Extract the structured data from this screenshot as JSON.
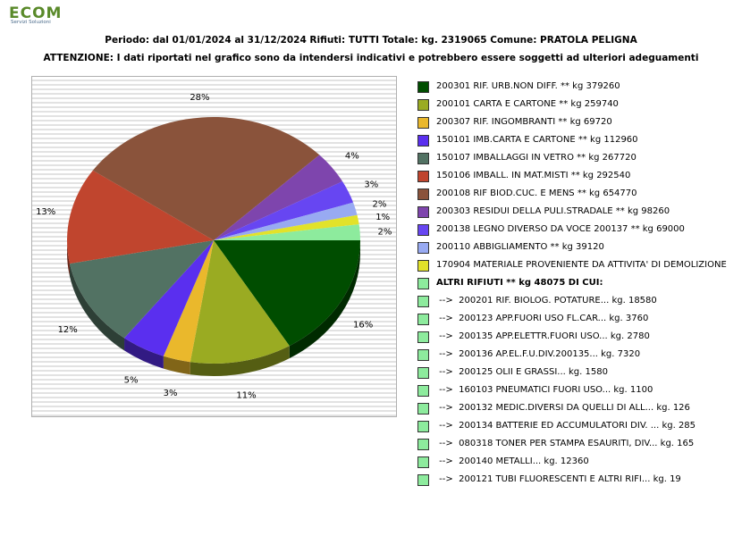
{
  "logo": {
    "brand": "ECOM",
    "tagline": "Servizi Soluzioni",
    "accent": "#5a8a2a"
  },
  "header": {
    "line1": "Periodo: dal 01/01/2024 al 31/12/2024 Rifiuti: TUTTI   Totale: kg. 2319065    Comune: PRATOLA PELIGNA",
    "line2": "ATTENZIONE: I dati riportati nel grafico sono da intendersi indicativi e potrebbero essere soggetti ad ulteriori adeguamenti"
  },
  "chart_data": {
    "type": "pie",
    "grid": true,
    "legend_position": "right",
    "slices": [
      {
        "code": "200301",
        "kg": 379260,
        "pct": "16%",
        "color": "#004d00"
      },
      {
        "code": "200101",
        "kg": 259740,
        "pct": "11%",
        "color": "#9aab22"
      },
      {
        "code": "200307",
        "kg": 69720,
        "pct": "3%",
        "color": "#eab82c"
      },
      {
        "code": "150101",
        "kg": 112960,
        "pct": "5%",
        "color": "#5a2fef"
      },
      {
        "code": "150107",
        "kg": 267720,
        "pct": "12%",
        "color": "#527263"
      },
      {
        "code": "150106",
        "kg": 292540,
        "pct": "13%",
        "color": "#c0452e"
      },
      {
        "code": "200108",
        "kg": 654770,
        "pct": "28%",
        "color": "#8a533b"
      },
      {
        "code": "200303",
        "kg": 98260,
        "pct": "4%",
        "color": "#7e45ad"
      },
      {
        "code": "200138",
        "kg": 69000,
        "pct": "3%",
        "color": "#6746f2"
      },
      {
        "code": "200110",
        "kg": 39120,
        "pct": "2%",
        "color": "#98aaf2"
      },
      {
        "code": "170904",
        "kg": 27900,
        "pct": "1%",
        "color": "#e2e22a"
      },
      {
        "code": "ALTRI",
        "kg": 48075,
        "pct": "2%",
        "color": "#8deb9d"
      }
    ]
  },
  "legend": [
    {
      "text": "200301 RIF. URB.NON DIFF. ** kg 379260",
      "color": "#004d00",
      "bold": false
    },
    {
      "text": "200101 CARTA E CARTONE ** kg 259740",
      "color": "#9aab22",
      "bold": false
    },
    {
      "text": "200307 RIF. INGOMBRANTI ** kg 69720",
      "color": "#eab82c",
      "bold": false
    },
    {
      "text": "150101 IMB.CARTA E CARTONE ** kg 112960",
      "color": "#5a2fef",
      "bold": false
    },
    {
      "text": "150107 IMBALLAGGI IN VETRO ** kg 267720",
      "color": "#527263",
      "bold": false
    },
    {
      "text": "150106 IMBALL. IN MAT.MISTI ** kg 292540",
      "color": "#c0452e",
      "bold": false
    },
    {
      "text": "200108 RIF BIOD.CUC. E MENS ** kg 654770",
      "color": "#8a533b",
      "bold": false
    },
    {
      "text": "200303 RESIDUI DELLA PULI.STRADALE ** kg 98260",
      "color": "#7e45ad",
      "bold": false
    },
    {
      "text": "200138 LEGNO DIVERSO DA VOCE 200137 ** kg 69000",
      "color": "#6746f2",
      "bold": false
    },
    {
      "text": "200110 ABBIGLIAMENTO ** kg 39120",
      "color": "#98aaf2",
      "bold": false
    },
    {
      "text": "170904 MATERIALE PROVENIENTE DA ATTIVITA' DI DEMOLIZIONE",
      "color": "#e2e22a",
      "bold": false
    },
    {
      "text": "ALTRI RIFIUTI ** kg 48075 DI CUI:",
      "color": "#8deb9d",
      "bold": true
    },
    {
      "text": " -->  200201 RIF. BIOLOG. POTATURE... kg. 18580",
      "color": "#8deb9d",
      "bold": false
    },
    {
      "text": " -->  200123 APP.FUORI USO FL.CAR... kg. 3760",
      "color": "#8deb9d",
      "bold": false
    },
    {
      "text": " -->  200135 APP.ELETTR.FUORI USO... kg. 2780",
      "color": "#8deb9d",
      "bold": false
    },
    {
      "text": " -->  200136 AP.EL.F.U.DIV.200135... kg. 7320",
      "color": "#8deb9d",
      "bold": false
    },
    {
      "text": " -->  200125 OLII E GRASSI... kg. 1580",
      "color": "#8deb9d",
      "bold": false
    },
    {
      "text": " -->  160103 PNEUMATICI FUORI USO... kg. 1100",
      "color": "#8deb9d",
      "bold": false
    },
    {
      "text": " -->  200132 MEDIC.DIVERSI DA QUELLI DI ALL... kg. 126",
      "color": "#8deb9d",
      "bold": false
    },
    {
      "text": " -->  200134 BATTERIE ED ACCUMULATORI DIV. ... kg. 285",
      "color": "#8deb9d",
      "bold": false
    },
    {
      "text": " -->  080318 TONER PER STAMPA ESAURITI, DIV... kg. 165",
      "color": "#8deb9d",
      "bold": false
    },
    {
      "text": " -->  200140 METALLI... kg. 12360",
      "color": "#8deb9d",
      "bold": false
    },
    {
      "text": " -->  200121 TUBI FLUORESCENTI E ALTRI RIFI... kg. 19",
      "color": "#8deb9d",
      "bold": false
    }
  ]
}
